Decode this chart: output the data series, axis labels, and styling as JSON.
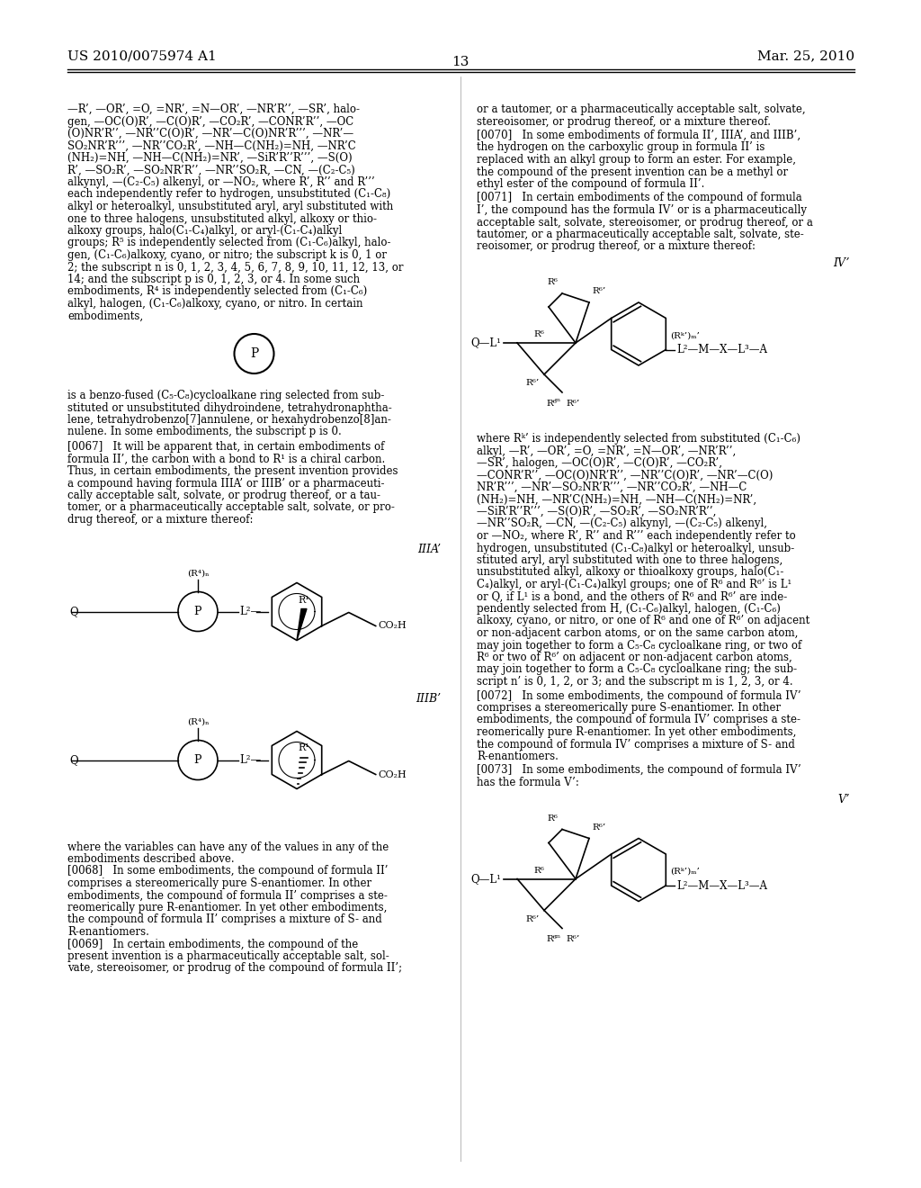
{
  "page_number": "13",
  "patent_number": "US 2010/0075974 A1",
  "patent_date": "Mar. 25, 2010",
  "bg": "#ffffff"
}
